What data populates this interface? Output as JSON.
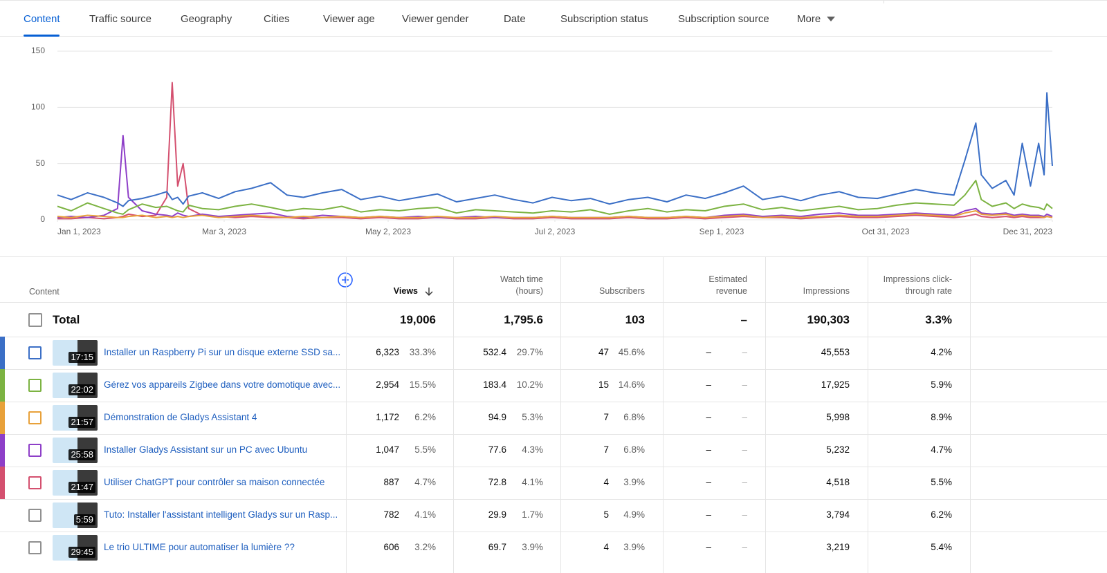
{
  "tabs": [
    "Content",
    "Traffic source",
    "Geography",
    "Cities",
    "Viewer age",
    "Viewer gender",
    "Date",
    "Subscription status",
    "Subscription source"
  ],
  "more": "More",
  "chart_data": {
    "type": "line",
    "x": [
      "2023-01-01",
      "2023-01-06",
      "2023-01-12",
      "2023-01-18",
      "2023-01-23",
      "2023-01-25",
      "2023-01-27",
      "2023-02-01",
      "2023-02-06",
      "2023-02-10",
      "2023-02-12",
      "2023-02-14",
      "2023-02-16",
      "2023-02-18",
      "2023-02-23",
      "2023-03-01",
      "2023-03-07",
      "2023-03-13",
      "2023-03-20",
      "2023-03-26",
      "2023-04-01",
      "2023-04-08",
      "2023-04-15",
      "2023-04-22",
      "2023-04-29",
      "2023-05-06",
      "2023-05-13",
      "2023-05-20",
      "2023-05-27",
      "2023-06-03",
      "2023-06-10",
      "2023-06-17",
      "2023-06-24",
      "2023-07-01",
      "2023-07-08",
      "2023-07-15",
      "2023-07-22",
      "2023-07-29",
      "2023-08-05",
      "2023-08-12",
      "2023-08-19",
      "2023-08-26",
      "2023-09-02",
      "2023-09-09",
      "2023-09-16",
      "2023-09-23",
      "2023-09-30",
      "2023-10-07",
      "2023-10-14",
      "2023-10-21",
      "2023-10-28",
      "2023-11-04",
      "2023-11-11",
      "2023-11-18",
      "2023-11-25",
      "2023-11-29",
      "2023-12-03",
      "2023-12-05",
      "2023-12-09",
      "2023-12-14",
      "2023-12-17",
      "2023-12-20",
      "2023-12-23",
      "2023-12-26",
      "2023-12-28",
      "2023-12-29",
      "2023-12-31"
    ],
    "xlim": [
      "2023-01-01",
      "2023-12-31"
    ],
    "xticks": [
      {
        "value": "2023-01-01",
        "label": "Jan 1, 2023"
      },
      {
        "value": "2023-03-03",
        "label": "Mar 3, 2023"
      },
      {
        "value": "2023-05-02",
        "label": "May 2, 2023"
      },
      {
        "value": "2023-07-02",
        "label": "Jul 2, 2023"
      },
      {
        "value": "2023-09-01",
        "label": "Sep 1, 2023"
      },
      {
        "value": "2023-10-31",
        "label": "Oct 31, 2023"
      },
      {
        "value": "2023-12-31",
        "label": "Dec 31, 2023"
      }
    ],
    "ylim": [
      0,
      150
    ],
    "yticks": [
      0,
      50,
      100,
      150
    ],
    "grid": true,
    "series": [
      {
        "color": "#3b6fc6",
        "values": [
          22,
          18,
          24,
          20,
          15,
          12,
          17,
          19,
          22,
          25,
          18,
          20,
          14,
          21,
          24,
          19,
          25,
          28,
          33,
          22,
          20,
          24,
          27,
          18,
          21,
          17,
          20,
          23,
          16,
          19,
          22,
          18,
          15,
          20,
          17,
          19,
          14,
          18,
          20,
          16,
          22,
          19,
          24,
          30,
          18,
          21,
          17,
          22,
          25,
          20,
          19,
          23,
          27,
          24,
          22,
          53,
          86,
          40,
          28,
          35,
          22,
          68,
          30,
          68,
          40,
          113,
          48
        ]
      },
      {
        "color": "#7cb342",
        "values": [
          12,
          8,
          15,
          10,
          6,
          5,
          9,
          14,
          11,
          12,
          10,
          8,
          7,
          13,
          10,
          9,
          12,
          14,
          11,
          8,
          10,
          9,
          12,
          7,
          9,
          8,
          10,
          11,
          6,
          9,
          8,
          7,
          6,
          8,
          7,
          9,
          5,
          8,
          10,
          7,
          9,
          8,
          12,
          14,
          9,
          11,
          8,
          10,
          12,
          9,
          10,
          13,
          15,
          14,
          13,
          22,
          35,
          18,
          12,
          15,
          10,
          14,
          12,
          11,
          9,
          14,
          10
        ]
      },
      {
        "color": "#e8a13a",
        "values": [
          3,
          2,
          4,
          3,
          2,
          2,
          3,
          4,
          2,
          3,
          2,
          3,
          2,
          3,
          4,
          2,
          3,
          4,
          3,
          2,
          3,
          2,
          3,
          2,
          3,
          2,
          2,
          3,
          2,
          2,
          3,
          2,
          2,
          3,
          2,
          2,
          2,
          3,
          2,
          2,
          3,
          2,
          3,
          4,
          2,
          3,
          2,
          3,
          4,
          3,
          3,
          4,
          5,
          4,
          3,
          6,
          8,
          5,
          4,
          5,
          3,
          4,
          3,
          3,
          2,
          3,
          2
        ]
      },
      {
        "color": "#8e3fc8",
        "values": [
          2,
          3,
          2,
          4,
          10,
          75,
          20,
          8,
          5,
          4,
          3,
          6,
          4,
          3,
          5,
          3,
          4,
          5,
          6,
          3,
          2,
          4,
          3,
          2,
          3,
          2,
          3,
          2,
          2,
          3,
          2,
          2,
          2,
          3,
          2,
          2,
          2,
          3,
          2,
          2,
          3,
          2,
          4,
          5,
          3,
          4,
          3,
          5,
          6,
          4,
          4,
          5,
          6,
          5,
          4,
          8,
          10,
          6,
          5,
          6,
          4,
          5,
          4,
          4,
          3,
          5,
          3
        ]
      },
      {
        "color": "#d4506f",
        "values": [
          1,
          1,
          2,
          1,
          2,
          3,
          5,
          3,
          4,
          20,
          122,
          30,
          50,
          10,
          4,
          3,
          2,
          3,
          2,
          2,
          1,
          2,
          2,
          1,
          2,
          1,
          1,
          2,
          1,
          1,
          2,
          1,
          1,
          2,
          1,
          1,
          1,
          2,
          1,
          1,
          2,
          1,
          2,
          3,
          2,
          2,
          1,
          2,
          3,
          2,
          2,
          3,
          4,
          3,
          2,
          3,
          5,
          3,
          2,
          3,
          2,
          3,
          2,
          2,
          2,
          3,
          2
        ]
      }
    ]
  },
  "table": {
    "headers": [
      "Content",
      "Views",
      "Watch time (hours)",
      "Subscribers",
      "Estimated revenue",
      "Impressions",
      "Impressions click-through rate"
    ],
    "total": {
      "label": "Total",
      "cells": [
        "19,006",
        "1,795.6",
        "103",
        "–",
        "190,303",
        "3.3%"
      ]
    },
    "rows": [
      {
        "duration": "17:15",
        "title": "Installer un Raspberry Pi sur un disque externe SSD sa...",
        "cells": [
          [
            "6,323",
            "33.3%"
          ],
          [
            "532.4",
            "29.7%"
          ],
          [
            "47",
            "45.6%"
          ],
          [
            "–",
            "–"
          ],
          [
            "45,553"
          ],
          [
            "4.2%"
          ]
        ]
      },
      {
        "duration": "22:02",
        "title": "Gérez vos appareils Zigbee dans votre domotique avec...",
        "cells": [
          [
            "2,954",
            "15.5%"
          ],
          [
            "183.4",
            "10.2%"
          ],
          [
            "15",
            "14.6%"
          ],
          [
            "–",
            "–"
          ],
          [
            "17,925"
          ],
          [
            "5.9%"
          ]
        ]
      },
      {
        "duration": "21:57",
        "title": "Démonstration de Gladys Assistant 4",
        "cells": [
          [
            "1,172",
            "6.2%"
          ],
          [
            "94.9",
            "5.3%"
          ],
          [
            "7",
            "6.8%"
          ],
          [
            "–",
            "–"
          ],
          [
            "5,998"
          ],
          [
            "8.9%"
          ]
        ]
      },
      {
        "duration": "25:58",
        "title": "Installer Gladys Assistant sur un PC avec Ubuntu",
        "cells": [
          [
            "1,047",
            "5.5%"
          ],
          [
            "77.6",
            "4.3%"
          ],
          [
            "7",
            "6.8%"
          ],
          [
            "–",
            "–"
          ],
          [
            "5,232"
          ],
          [
            "4.7%"
          ]
        ]
      },
      {
        "duration": "21:47",
        "title": "Utiliser ChatGPT pour contrôler sa maison connectée",
        "cells": [
          [
            "887",
            "4.7%"
          ],
          [
            "72.8",
            "4.1%"
          ],
          [
            "4",
            "3.9%"
          ],
          [
            "–",
            "–"
          ],
          [
            "4,518"
          ],
          [
            "5.5%"
          ]
        ]
      },
      {
        "duration": "5:59",
        "title": "Tuto: Installer l'assistant intelligent Gladys sur un Rasp...",
        "cells": [
          [
            "782",
            "4.1%"
          ],
          [
            "29.9",
            "1.7%"
          ],
          [
            "5",
            "4.9%"
          ],
          [
            "–",
            "–"
          ],
          [
            "3,794"
          ],
          [
            "6.2%"
          ]
        ]
      },
      {
        "duration": "29:45",
        "title": "Le trio ULTIME pour automatiser la lumière ??",
        "cells": [
          [
            "606",
            "3.2%"
          ],
          [
            "69.7",
            "3.9%"
          ],
          [
            "4",
            "3.9%"
          ],
          [
            "–",
            "–"
          ],
          [
            "3,219"
          ],
          [
            "5.4%"
          ]
        ]
      }
    ]
  }
}
